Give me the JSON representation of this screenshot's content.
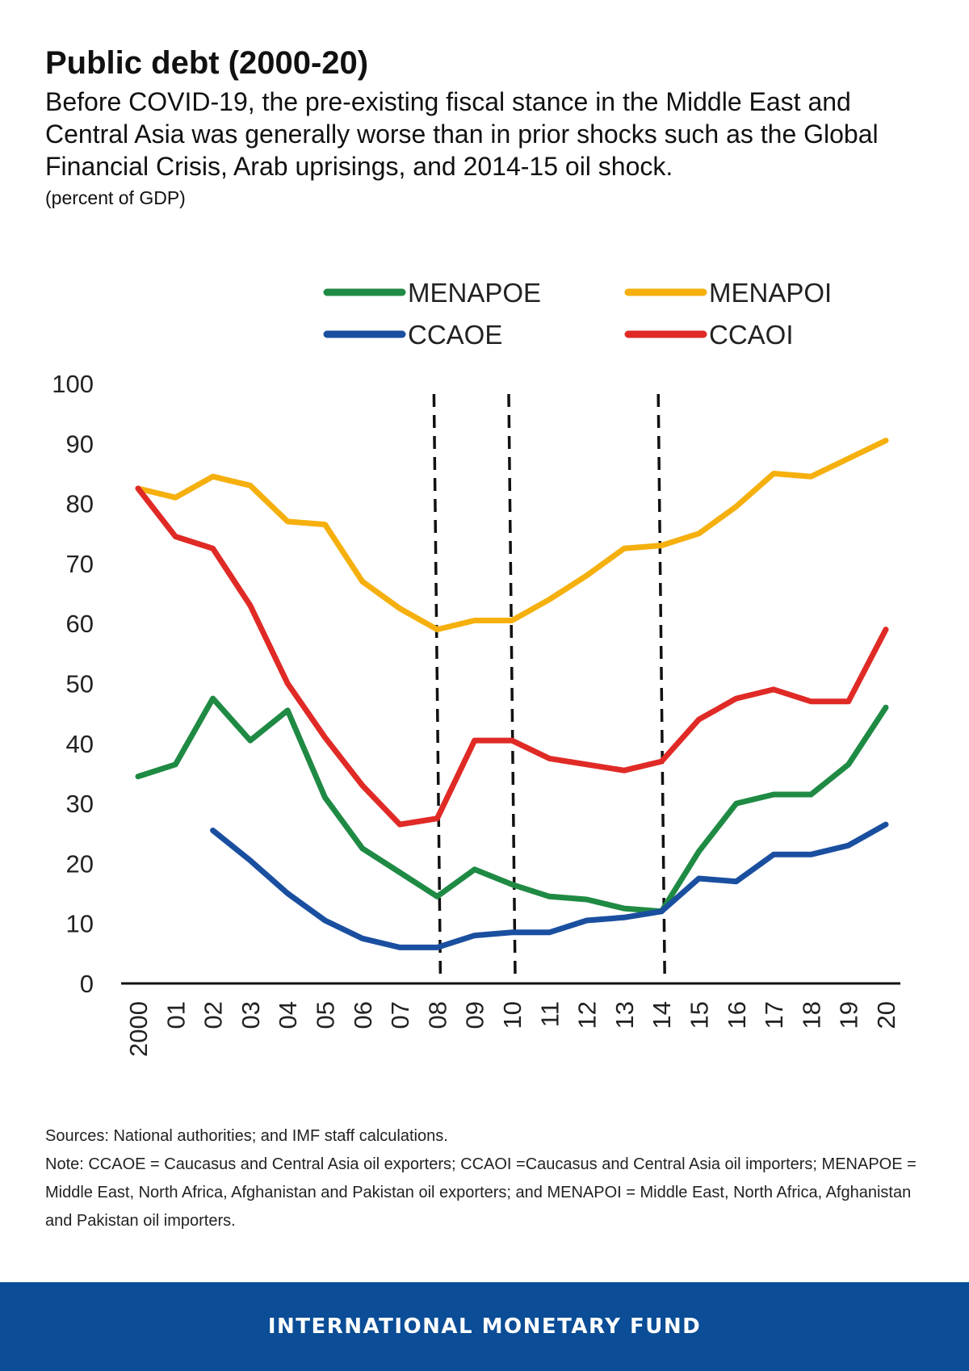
{
  "header": {
    "title": "Public debt (2000-20)",
    "subtitle": "Before COVID-19, the pre-existing fiscal stance in the Middle East and Central Asia was generally worse than in prior shocks such as the Global Financial Crisis, Arab uprisings, and 2014-15 oil shock.",
    "units": "(percent of GDP)"
  },
  "chart_data": {
    "type": "line",
    "title": "",
    "xlabel": "",
    "ylabel": "",
    "x": [
      "2000",
      "01",
      "02",
      "03",
      "04",
      "05",
      "06",
      "07",
      "08",
      "09",
      "10",
      "11",
      "12",
      "13",
      "14",
      "15",
      "16",
      "17",
      "18",
      "19",
      "20"
    ],
    "ylim": [
      0,
      100
    ],
    "yticks": [
      0,
      10,
      20,
      30,
      40,
      50,
      60,
      70,
      80,
      90,
      100
    ],
    "grid": false,
    "legend_position": "top",
    "vertical_dashed_lines_at": [
      "08",
      "10",
      "14"
    ],
    "series": [
      {
        "name": "MENAPOE",
        "color": "#1f8a43",
        "values": [
          34.5,
          36.5,
          47.5,
          40.5,
          45.5,
          31,
          22.5,
          18.5,
          14.5,
          19,
          16.5,
          14.5,
          14,
          12.5,
          12,
          22,
          30,
          31.5,
          31.5,
          36.5,
          46
        ]
      },
      {
        "name": "MENAPOI",
        "color": "#f5b00e",
        "values": [
          82.5,
          81,
          84.5,
          83,
          77,
          76.5,
          67,
          62.5,
          59,
          60.5,
          60.5,
          64,
          68,
          72.5,
          73,
          75,
          79.5,
          85,
          84.5,
          87.5,
          90.5
        ]
      },
      {
        "name": "CCAOE",
        "color": "#1a4fa0",
        "values": [
          null,
          null,
          25.5,
          20.5,
          15,
          10.5,
          7.5,
          6,
          6,
          8,
          8.5,
          8.5,
          10.5,
          11,
          12,
          17.5,
          17,
          21.5,
          21.5,
          23,
          26.5
        ]
      },
      {
        "name": "CCAOI",
        "color": "#e02a26",
        "values": [
          82.5,
          74.5,
          72.5,
          63,
          50,
          41,
          33,
          26.5,
          27.5,
          40.5,
          40.5,
          37.5,
          36.5,
          35.5,
          37,
          44,
          47.5,
          49,
          47,
          47,
          59
        ]
      }
    ]
  },
  "footer": {
    "sources": "Sources: National authorities; and IMF staff calculations.",
    "note": "Note: CCAOE = Caucasus and Central Asia oil exporters; CCAOI =Caucasus and Central Asia oil importers; MENAPOE = Middle East, North Africa, Afghanistan and Pakistan oil exporters; and MENAPOI = Middle East, North Africa, Afghanistan and Pakistan oil importers."
  },
  "brand": {
    "name": "INTERNATIONAL MONETARY FUND",
    "color": "#0b4d96"
  }
}
